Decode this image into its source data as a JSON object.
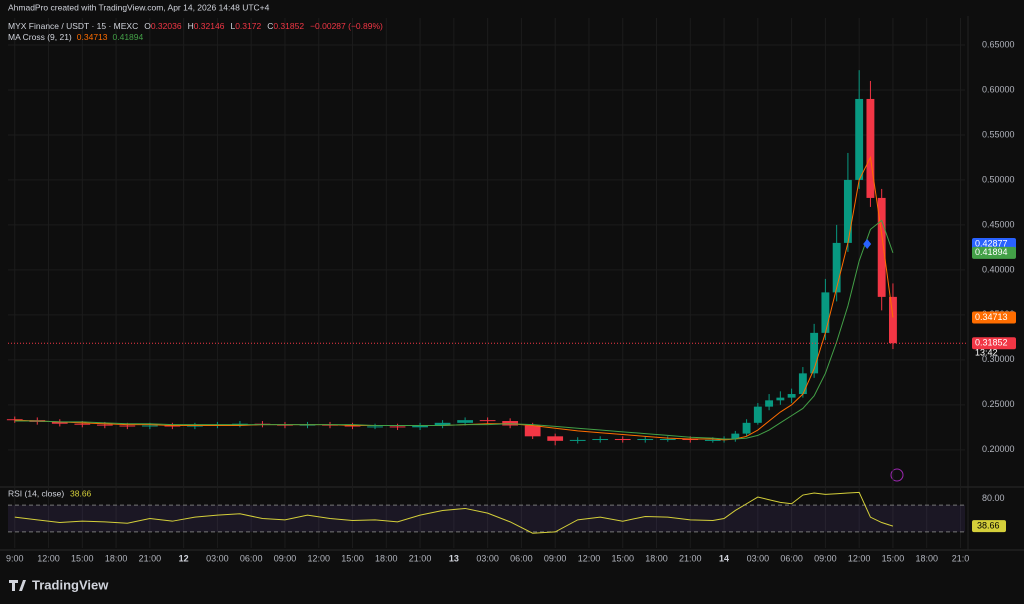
{
  "header": {
    "credit": "AhmadPro created with TradingView.com, Apr 14, 2026 14:48 UTC+4",
    "logo": "TradingView"
  },
  "chart_data": [
    {
      "type": "candlestick",
      "title": "MYX Finance / USDT · 15 · MEXC",
      "ohlc_labels": {
        "open": "O",
        "high": "H",
        "low": "L",
        "close": "C"
      },
      "ohlc_values": {
        "open": 0.32036,
        "high": 0.32146,
        "low": 0.3172,
        "close": 0.31852
      },
      "change_label": "−0.00287 (−0.89%)",
      "indicator": "MA Cross (9, 21)",
      "countdown": "13:42",
      "marker_value": 0.42877,
      "colors": {
        "up": "#089981",
        "down": "#f23645",
        "marker": "#2962ff"
      },
      "x": [
        0,
        2,
        4,
        6,
        8,
        10,
        12,
        14,
        16,
        18,
        20,
        22,
        24,
        26,
        28,
        30,
        32,
        34,
        36,
        38,
        40,
        42,
        44,
        46,
        48,
        50,
        52,
        54,
        56,
        58,
        60,
        62,
        63,
        64,
        65,
        66,
        67,
        68,
        69,
        70,
        71,
        72,
        73,
        74,
        75,
        76,
        77,
        78
      ],
      "open": [
        0.234,
        0.233,
        0.231,
        0.229,
        0.228,
        0.227,
        0.226,
        0.227,
        0.226,
        0.227,
        0.228,
        0.229,
        0.228,
        0.227,
        0.228,
        0.227,
        0.226,
        0.226,
        0.225,
        0.227,
        0.23,
        0.233,
        0.232,
        0.227,
        0.215,
        0.21,
        0.211,
        0.212,
        0.211,
        0.212,
        0.212,
        0.211,
        0.211,
        0.212,
        0.218,
        0.23,
        0.248,
        0.255,
        0.258,
        0.262,
        0.285,
        0.33,
        0.375,
        0.43,
        0.5,
        0.59,
        0.48,
        0.37
      ],
      "high": [
        0.237,
        0.236,
        0.234,
        0.232,
        0.231,
        0.23,
        0.23,
        0.23,
        0.23,
        0.231,
        0.232,
        0.232,
        0.231,
        0.231,
        0.231,
        0.23,
        0.229,
        0.229,
        0.23,
        0.233,
        0.236,
        0.236,
        0.235,
        0.23,
        0.218,
        0.214,
        0.215,
        0.215,
        0.215,
        0.215,
        0.215,
        0.214,
        0.215,
        0.221,
        0.234,
        0.252,
        0.262,
        0.265,
        0.268,
        0.292,
        0.34,
        0.39,
        0.45,
        0.53,
        0.622,
        0.61,
        0.49,
        0.385
      ],
      "low": [
        0.23,
        0.228,
        0.226,
        0.225,
        0.224,
        0.223,
        0.223,
        0.223,
        0.223,
        0.224,
        0.225,
        0.225,
        0.224,
        0.224,
        0.224,
        0.223,
        0.223,
        0.222,
        0.222,
        0.224,
        0.227,
        0.229,
        0.224,
        0.212,
        0.205,
        0.207,
        0.208,
        0.208,
        0.208,
        0.209,
        0.208,
        0.208,
        0.208,
        0.209,
        0.215,
        0.228,
        0.244,
        0.25,
        0.252,
        0.258,
        0.28,
        0.322,
        0.365,
        0.42,
        0.49,
        0.47,
        0.355,
        0.312
      ],
      "close": [
        0.233,
        0.231,
        0.229,
        0.228,
        0.227,
        0.226,
        0.227,
        0.226,
        0.227,
        0.228,
        0.229,
        0.228,
        0.227,
        0.228,
        0.227,
        0.226,
        0.226,
        0.225,
        0.227,
        0.23,
        0.233,
        0.232,
        0.227,
        0.215,
        0.21,
        0.211,
        0.212,
        0.211,
        0.212,
        0.212,
        0.211,
        0.211,
        0.212,
        0.218,
        0.23,
        0.248,
        0.255,
        0.258,
        0.262,
        0.285,
        0.33,
        0.375,
        0.43,
        0.5,
        0.59,
        0.48,
        0.37,
        0.31852
      ],
      "series": [
        {
          "name": "MA 9",
          "color": "#ff6d00",
          "last": 0.34713,
          "values": [
            0.233,
            0.232,
            0.231,
            0.23,
            0.229,
            0.228,
            0.228,
            0.227,
            0.227,
            0.227,
            0.227,
            0.228,
            0.228,
            0.228,
            0.228,
            0.227,
            0.227,
            0.227,
            0.227,
            0.227,
            0.228,
            0.229,
            0.229,
            0.227,
            0.224,
            0.221,
            0.219,
            0.217,
            0.215,
            0.213,
            0.212,
            0.212,
            0.211,
            0.212,
            0.215,
            0.222,
            0.232,
            0.242,
            0.25,
            0.262,
            0.29,
            0.33,
            0.38,
            0.43,
            0.5,
            0.525,
            0.44,
            0.34713
          ]
        },
        {
          "name": "MA 21",
          "color": "#43a047",
          "last": 0.41894,
          "values": [
            0.232,
            0.232,
            0.231,
            0.231,
            0.23,
            0.229,
            0.229,
            0.228,
            0.228,
            0.228,
            0.228,
            0.228,
            0.228,
            0.228,
            0.228,
            0.228,
            0.227,
            0.227,
            0.227,
            0.227,
            0.228,
            0.228,
            0.229,
            0.228,
            0.226,
            0.224,
            0.222,
            0.22,
            0.218,
            0.216,
            0.214,
            0.213,
            0.212,
            0.212,
            0.213,
            0.216,
            0.222,
            0.23,
            0.238,
            0.246,
            0.26,
            0.285,
            0.32,
            0.36,
            0.41,
            0.445,
            0.455,
            0.41894
          ]
        }
      ],
      "xlim": [
        -0.6,
        84.4
      ],
      "xticks": [
        {
          "value": 0,
          "label": "9:00"
        },
        {
          "value": 3,
          "label": "12:00"
        },
        {
          "value": 6,
          "label": "15:00"
        },
        {
          "value": 9,
          "label": "18:00"
        },
        {
          "value": 12,
          "label": "21:00"
        },
        {
          "value": 15,
          "label": "12"
        },
        {
          "value": 18,
          "label": "03:00"
        },
        {
          "value": 21,
          "label": "06:00"
        },
        {
          "value": 24,
          "label": "09:00"
        },
        {
          "value": 27,
          "label": "12:00"
        },
        {
          "value": 30,
          "label": "15:00"
        },
        {
          "value": 33,
          "label": "18:00"
        },
        {
          "value": 36,
          "label": "21:00"
        },
        {
          "value": 39,
          "label": "13"
        },
        {
          "value": 42,
          "label": "03:00"
        },
        {
          "value": 45,
          "label": "06:00"
        },
        {
          "value": 48,
          "label": "09:00"
        },
        {
          "value": 51,
          "label": "12:00"
        },
        {
          "value": 54,
          "label": "15:00"
        },
        {
          "value": 57,
          "label": "18:00"
        },
        {
          "value": 60,
          "label": "21:00"
        },
        {
          "value": 63,
          "label": "14"
        },
        {
          "value": 66,
          "label": "03:00"
        },
        {
          "value": 69,
          "label": "06:00"
        },
        {
          "value": 72,
          "label": "09:00"
        },
        {
          "value": 75,
          "label": "12:00"
        },
        {
          "value": 78,
          "label": "15:00"
        },
        {
          "value": 81,
          "label": "18:00"
        },
        {
          "value": 84,
          "label": "21:0"
        }
      ],
      "ylim": [
        0.162,
        0.68
      ],
      "yticks": [
        {
          "value": 0.2,
          "label": "0.20000"
        },
        {
          "value": 0.25,
          "label": "0.25000"
        },
        {
          "value": 0.3,
          "label": "0.30000"
        },
        {
          "value": 0.35,
          "label": "0.35000"
        },
        {
          "value": 0.4,
          "label": "0.40000"
        },
        {
          "value": 0.45,
          "label": "0.45000"
        },
        {
          "value": 0.5,
          "label": "0.50000"
        },
        {
          "value": 0.55,
          "label": "0.55000"
        },
        {
          "value": 0.6,
          "label": "0.60000"
        },
        {
          "value": 0.65,
          "label": "0.65000"
        }
      ]
    },
    {
      "type": "line",
      "title": "RSI (14, close)",
      "last": 38.66,
      "color": "#d4cf3a",
      "bands": [
        70,
        30
      ],
      "x": [
        0,
        2,
        4,
        6,
        8,
        10,
        12,
        14,
        16,
        18,
        20,
        22,
        24,
        26,
        28,
        30,
        32,
        34,
        36,
        38,
        40,
        42,
        44,
        46,
        48,
        50,
        52,
        54,
        56,
        58,
        60,
        62,
        63,
        64,
        65,
        66,
        67,
        68,
        69,
        70,
        71,
        72,
        73,
        74,
        75,
        76,
        77,
        78
      ],
      "values": [
        52,
        48,
        44,
        46,
        45,
        43,
        50,
        46,
        52,
        55,
        57,
        50,
        48,
        55,
        50,
        47,
        48,
        45,
        55,
        62,
        65,
        58,
        45,
        28,
        30,
        48,
        52,
        46,
        53,
        52,
        48,
        47,
        50,
        62,
        72,
        82,
        78,
        74,
        72,
        85,
        88,
        86,
        87,
        88,
        89,
        52,
        44,
        38.66
      ],
      "xlim": [
        -0.6,
        84.4
      ],
      "ylim": [
        6,
        94
      ],
      "yticks": [
        {
          "value": 80,
          "label": "80.00"
        }
      ]
    }
  ]
}
